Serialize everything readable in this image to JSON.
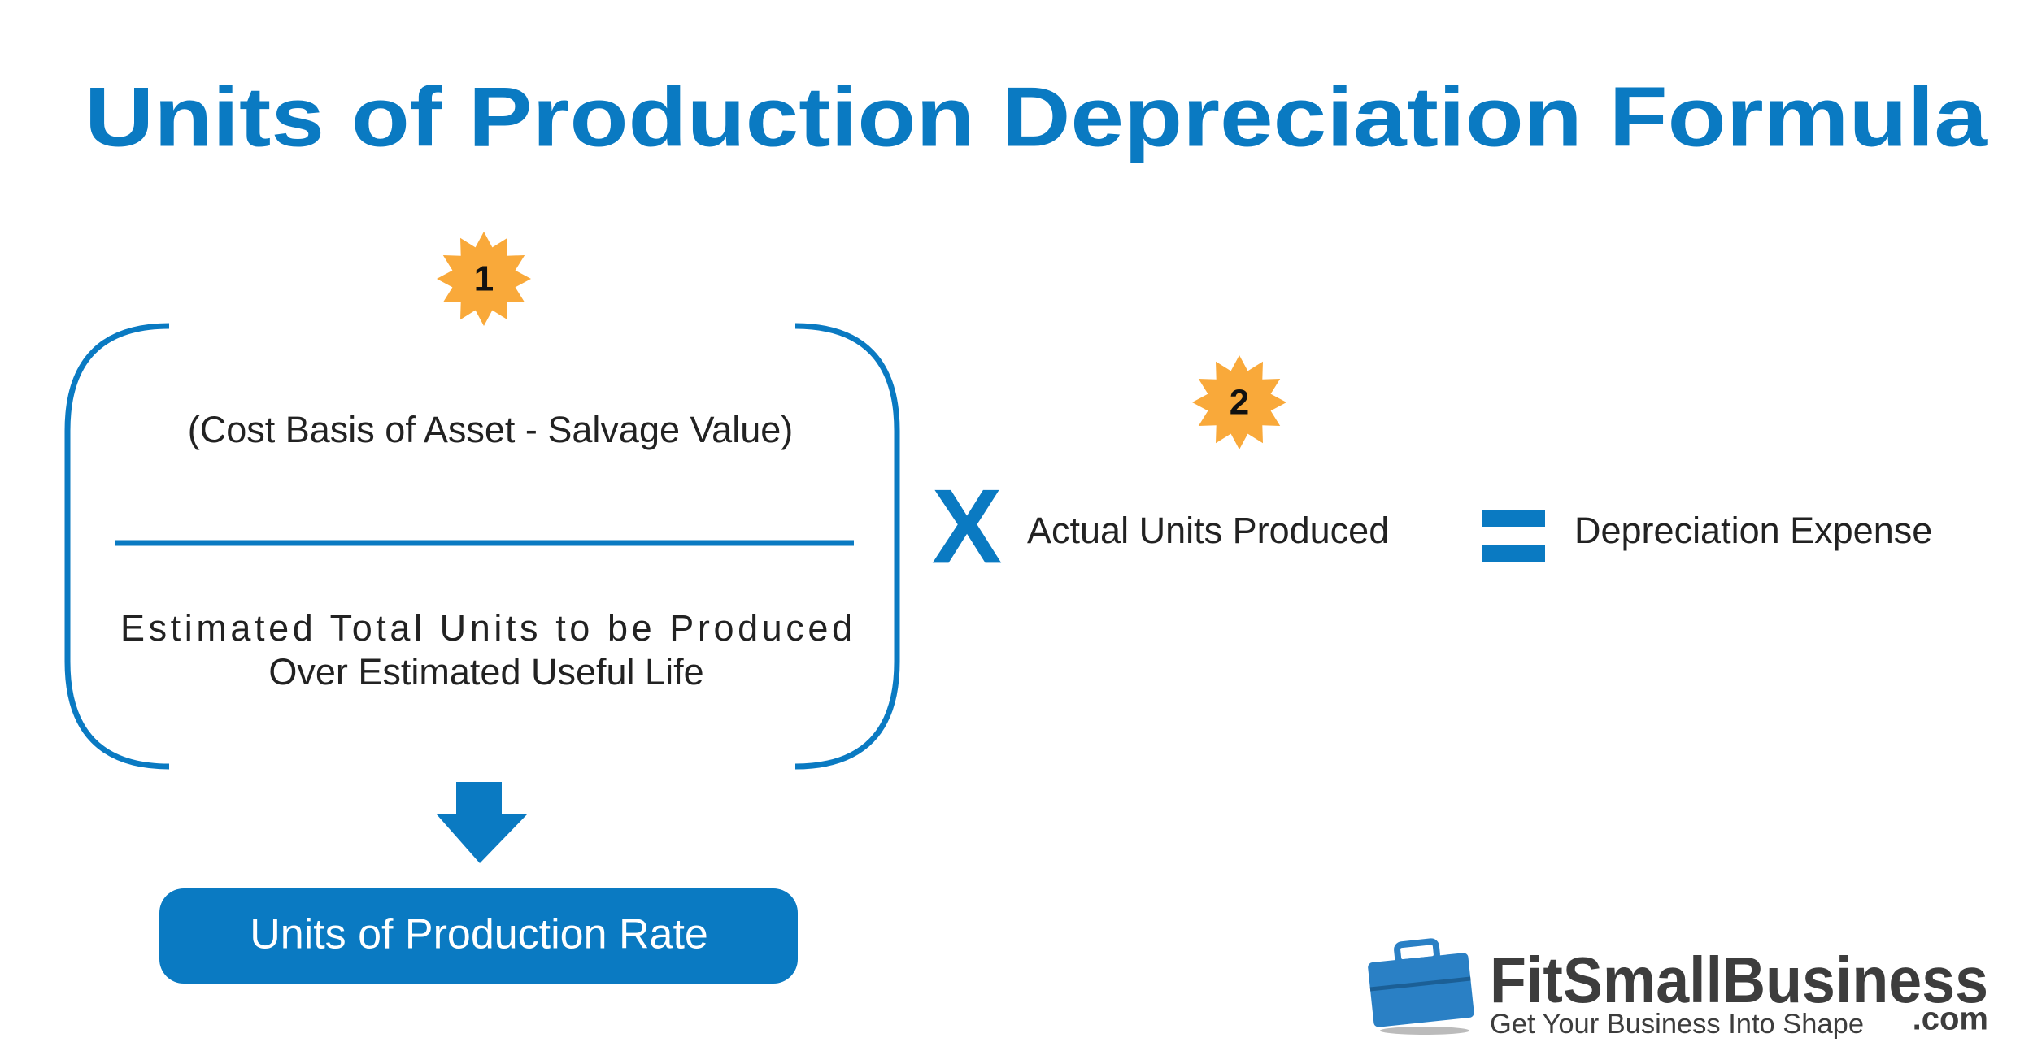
{
  "title": "Units of Production Depreciation Formula",
  "steps": [
    "1",
    "2"
  ],
  "formula": {
    "numerator": "(Cost Basis of Asset - Salvage Value)",
    "denominator": [
      "Estimated Total Units to be Produced",
      "Over Estimated  Useful Life"
    ],
    "operator": "X",
    "factor": "Actual Units Produced",
    "result": "Depreciation Expense"
  },
  "rate": "Units of Production Rate",
  "logo": {
    "name": "FitSmallBusiness",
    "domain": ".com",
    "tagline": "Get Your Business Into Shape"
  }
}
